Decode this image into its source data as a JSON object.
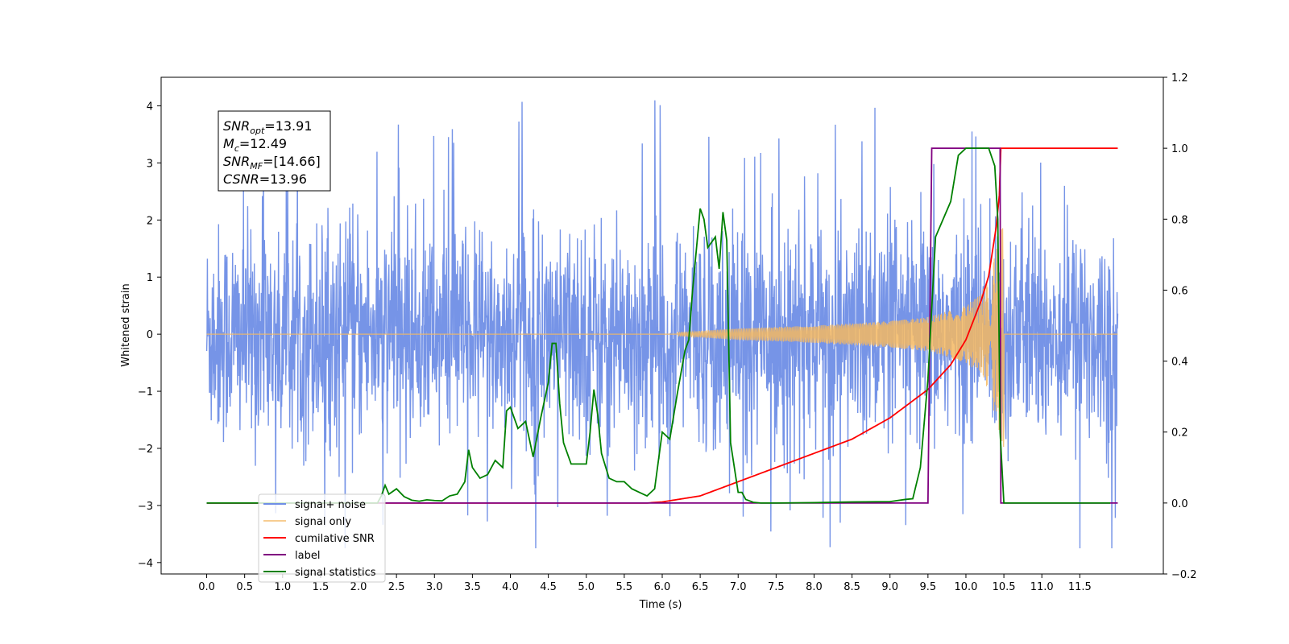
{
  "chart_data": {
    "type": "line",
    "xlabel": "Time (s)",
    "ylabel": "Whitened strain",
    "ylim_left": [
      -4.2,
      4.5
    ],
    "ylim_right": [
      -0.2,
      1.2
    ],
    "xlim": [
      -0.6,
      12.6
    ],
    "x_ticks": [
      "0.0",
      "0.5",
      "1.0",
      "1.5",
      "2.0",
      "2.5",
      "3.0",
      "3.5",
      "4.0",
      "4.5",
      "5.0",
      "5.5",
      "6.0",
      "6.5",
      "7.0",
      "7.5",
      "8.0",
      "8.5",
      "9.0",
      "9.5",
      "10.0",
      "10.5",
      "11.0",
      "11.5"
    ],
    "y_ticks_left": [
      "4",
      "3",
      "2",
      "1",
      "0",
      "−1",
      "−2",
      "−3",
      "−4"
    ],
    "y_ticks_right": [
      "1.2",
      "1.0",
      "0.8",
      "0.6",
      "0.4",
      "0.2",
      "0.0",
      "−0.2"
    ],
    "legend_position": "lower-left",
    "annotation": {
      "lines": [
        {
          "base": "SNR",
          "sub": "opt",
          "rest": "=13.91"
        },
        {
          "base": "M",
          "sub": "c",
          "rest": "=12.49"
        },
        {
          "base": "SNR",
          "sub": "MF",
          "rest": "=[14.66]"
        },
        {
          "base": "CSNR",
          "sub": "",
          "rest": "=13.96"
        }
      ]
    },
    "series": [
      {
        "name": "signal+ noise",
        "color": "#6f8ee6",
        "axis": "left",
        "kind": "noise",
        "x_range": [
          0,
          12
        ],
        "envelope": [
          -2.4,
          2.4
        ],
        "peak_max": 4.12,
        "peak_min": -3.75
      },
      {
        "name": "signal only",
        "color": "#f4b862",
        "axis": "left",
        "kind": "chirp",
        "merger_time": 10.5,
        "envelope_x": [
          6.2,
          7.0,
          8.0,
          9.0,
          9.5,
          10.0,
          10.2,
          10.3,
          10.4,
          10.5,
          10.55
        ],
        "envelope_y": [
          0.03,
          0.1,
          0.15,
          0.23,
          0.3,
          0.5,
          0.7,
          1.0,
          1.5,
          2.0,
          0
        ]
      },
      {
        "name": "cumilative SNR",
        "color": "#ff0000",
        "axis": "right",
        "x": [
          0,
          5.8,
          6.0,
          6.5,
          7.0,
          7.5,
          8.0,
          8.5,
          9.0,
          9.5,
          9.8,
          10.0,
          10.2,
          10.3,
          10.4,
          10.45,
          10.46,
          12.0
        ],
        "y": [
          0,
          0,
          0.003,
          0.02,
          0.06,
          0.1,
          0.14,
          0.18,
          0.24,
          0.32,
          0.39,
          0.46,
          0.57,
          0.64,
          0.78,
          0.89,
          1.0,
          1.0
        ]
      },
      {
        "name": "label",
        "color": "#800080",
        "axis": "right",
        "x": [
          0,
          9.5,
          9.55,
          10.45,
          10.46,
          12.0
        ],
        "y": [
          0,
          0,
          1.0,
          1.0,
          0,
          0
        ]
      },
      {
        "name": "signal statistics",
        "color": "#008000",
        "axis": "right",
        "x": [
          0,
          2.25,
          2.3,
          2.35,
          2.4,
          2.5,
          2.6,
          2.7,
          2.8,
          2.9,
          3.0,
          3.1,
          3.2,
          3.3,
          3.4,
          3.45,
          3.5,
          3.6,
          3.7,
          3.8,
          3.9,
          3.95,
          4.0,
          4.1,
          4.2,
          4.3,
          4.4,
          4.5,
          4.55,
          4.6,
          4.65,
          4.7,
          4.8,
          4.9,
          5.0,
          5.05,
          5.1,
          5.15,
          5.2,
          5.3,
          5.4,
          5.5,
          5.6,
          5.7,
          5.8,
          5.9,
          6.0,
          6.1,
          6.2,
          6.3,
          6.35,
          6.4,
          6.5,
          6.55,
          6.6,
          6.7,
          6.75,
          6.8,
          6.85,
          6.9,
          7.0,
          7.05,
          7.1,
          7.2,
          7.3,
          7.5,
          8.0,
          8.5,
          9.0,
          9.2,
          9.3,
          9.4,
          9.5,
          9.6,
          9.7,
          9.8,
          9.9,
          10.0,
          10.1,
          10.3,
          10.38,
          10.42,
          10.45,
          10.5,
          11.0,
          11.9
        ],
        "y": [
          0,
          0,
          0.02,
          0.05,
          0.025,
          0.04,
          0.018,
          0.008,
          0.005,
          0.009,
          0.007,
          0.006,
          0.02,
          0.025,
          0.06,
          0.15,
          0.1,
          0.07,
          0.08,
          0.12,
          0.1,
          0.26,
          0.27,
          0.21,
          0.23,
          0.13,
          0.24,
          0.34,
          0.45,
          0.45,
          0.28,
          0.17,
          0.11,
          0.11,
          0.11,
          0.2,
          0.32,
          0.25,
          0.14,
          0.07,
          0.06,
          0.06,
          0.04,
          0.03,
          0.02,
          0.04,
          0.2,
          0.18,
          0.31,
          0.43,
          0.46,
          0.6,
          0.83,
          0.8,
          0.72,
          0.75,
          0.66,
          0.82,
          0.74,
          0.17,
          0.03,
          0.03,
          0.01,
          0.002,
          0.0,
          0.0,
          0.001,
          0.003,
          0.004,
          0.01,
          0.012,
          0.1,
          0.35,
          0.75,
          0.8,
          0.85,
          0.98,
          1.0,
          1.0,
          1.0,
          0.95,
          0.8,
          0.2,
          0,
          0,
          0
        ]
      }
    ]
  }
}
